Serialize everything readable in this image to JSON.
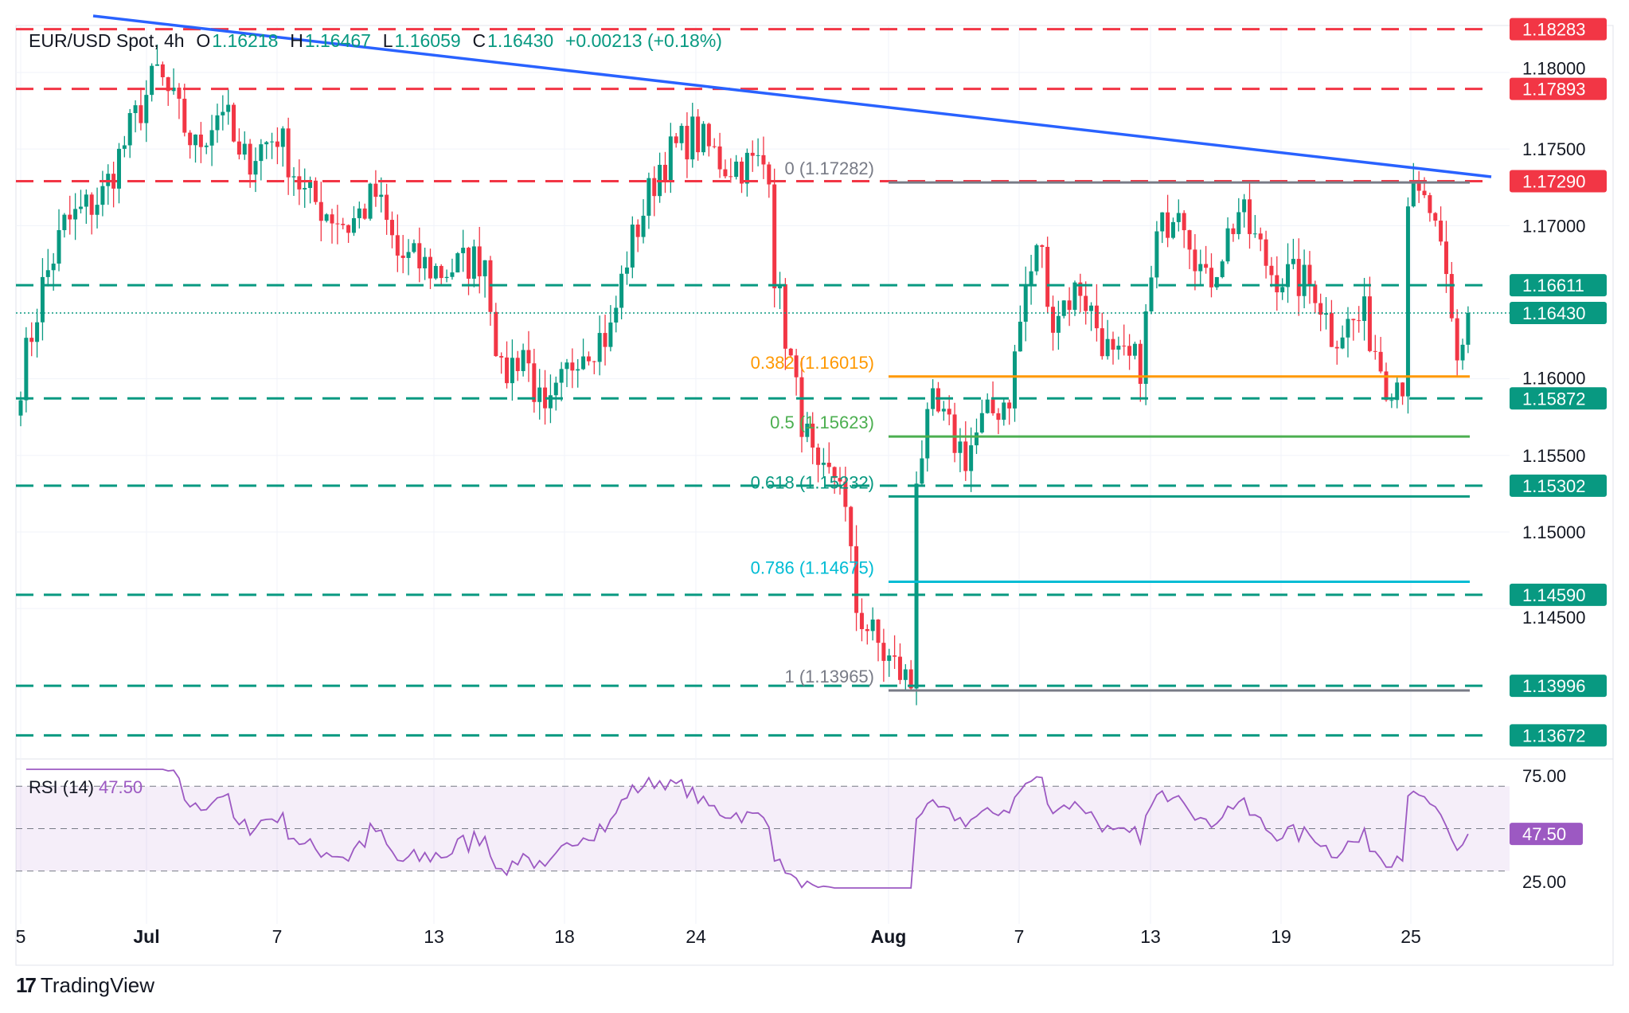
{
  "header": {
    "symbol": "EUR/USD Spot, 4h",
    "o_label": "O",
    "open": "1.16218",
    "h_label": "H",
    "high": "1.16467",
    "l_label": "L",
    "low": "1.16059",
    "c_label": "C",
    "close": "1.16430",
    "change": "+0.00213 (+0.18%)"
  },
  "branding": {
    "name": "TradingView"
  },
  "colors": {
    "up": "#089981",
    "down": "#f23645",
    "trendline": "#2962ff",
    "rsi": "#9c59c2",
    "resistance": "#f23645",
    "support": "#089981"
  },
  "chart_data": {
    "type": "candlestick",
    "price_axis_ticks": [
      "1.18000",
      "1.17500",
      "1.17000",
      "1.16000",
      "1.15500",
      "1.15000",
      "1.14500"
    ],
    "date_axis_ticks": [
      "5",
      "Jul",
      "7",
      "13",
      "18",
      "24",
      "Aug",
      "7",
      "13",
      "19",
      "25"
    ],
    "approx_close_path": [
      [
        0,
        1.16
      ],
      [
        4,
        1.166
      ],
      [
        8,
        1.17
      ],
      [
        15,
        1.172
      ],
      [
        21,
        1.177
      ],
      [
        25,
        1.18
      ],
      [
        32,
        1.175
      ],
      [
        37,
        1.178
      ],
      [
        40,
        1.174
      ],
      [
        47,
        1.176
      ],
      [
        52,
        1.172
      ],
      [
        60,
        1.17
      ],
      [
        65,
        1.172
      ],
      [
        69,
        1.168
      ],
      [
        77,
        1.167
      ],
      [
        85,
        1.168
      ],
      [
        88,
        1.16
      ],
      [
        92,
        1.162
      ],
      [
        96,
        1.157
      ],
      [
        102,
        1.162
      ],
      [
        108,
        1.163
      ],
      [
        111,
        1.168
      ],
      [
        113,
        1.17
      ],
      [
        117,
        1.174
      ],
      [
        123,
        1.176
      ],
      [
        129,
        1.174
      ],
      [
        137,
        1.174
      ],
      [
        138,
        1.167
      ],
      [
        142,
        1.159
      ],
      [
        146,
        1.153
      ],
      [
        150,
        1.154
      ],
      [
        153,
        1.145
      ],
      [
        158,
        1.142
      ],
      [
        163,
        1.14
      ],
      [
        164,
        1.154
      ],
      [
        167,
        1.158
      ],
      [
        173,
        1.155
      ],
      [
        176,
        1.157
      ],
      [
        181,
        1.159
      ],
      [
        184,
        1.166
      ],
      [
        187,
        1.169
      ],
      [
        188,
        1.164
      ],
      [
        194,
        1.166
      ],
      [
        200,
        1.161
      ],
      [
        205,
        1.161
      ],
      [
        208,
        1.169
      ],
      [
        212,
        1.172
      ],
      [
        217,
        1.166
      ],
      [
        223,
        1.171
      ],
      [
        229,
        1.167
      ],
      [
        237,
        1.166
      ],
      [
        240,
        1.163
      ],
      [
        246,
        1.164
      ],
      [
        250,
        1.16
      ],
      [
        253,
        1.16
      ],
      [
        254,
        1.172
      ],
      [
        258,
        1.171
      ],
      [
        261,
        1.166
      ],
      [
        263,
        1.161
      ],
      [
        265,
        1.1643
      ]
    ],
    "horizontal_levels": [
      {
        "value": 1.18283,
        "label": "1.18283",
        "kind": "resistance"
      },
      {
        "value": 1.17893,
        "label": "1.17893",
        "kind": "resistance"
      },
      {
        "value": 1.1729,
        "label": "1.17290",
        "kind": "resistance"
      },
      {
        "value": 1.16611,
        "label": "1.16611",
        "kind": "support"
      },
      {
        "value": 1.1643,
        "label": "1.16430",
        "kind": "current"
      },
      {
        "value": 1.15872,
        "label": "1.15872",
        "kind": "support"
      },
      {
        "value": 1.15302,
        "label": "1.15302",
        "kind": "support"
      },
      {
        "value": 1.1459,
        "label": "1.14590",
        "kind": "support"
      },
      {
        "value": 1.13996,
        "label": "1.13996",
        "kind": "support"
      },
      {
        "value": 1.13672,
        "label": "1.13672",
        "kind": "support"
      }
    ],
    "fibonacci": [
      {
        "ratio": "0",
        "value": 1.17282,
        "label": "0 (1.17282)",
        "color": "#787b86"
      },
      {
        "ratio": "0.382",
        "value": 1.16015,
        "label": "0.382 (1.16015)",
        "color": "#ff9800"
      },
      {
        "ratio": "0.5",
        "value": 1.15623,
        "label": "0.5 (1.15623)",
        "color": "#4caf50"
      },
      {
        "ratio": "0.618",
        "value": 1.15232,
        "label": "0.618 (1.15232)",
        "color": "#089981"
      },
      {
        "ratio": "0.786",
        "value": 1.14675,
        "label": "0.786 (1.14675)",
        "color": "#00bcd4"
      },
      {
        "ratio": "1",
        "value": 1.13965,
        "label": "1 (1.13965)",
        "color": "#787b86"
      }
    ],
    "rsi": {
      "label": "RSI (14)",
      "value": "47.50",
      "ticks": [
        "75.00",
        "25.00"
      ],
      "bands": [
        70,
        50,
        30
      ]
    }
  }
}
